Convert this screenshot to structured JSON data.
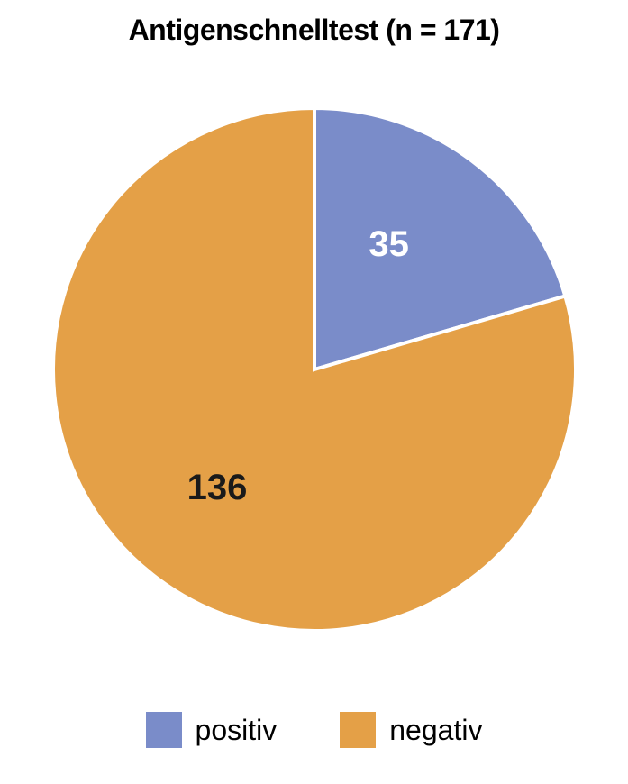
{
  "chart": {
    "type": "pie",
    "title": "Antigenschnelltest (n = 171)",
    "title_fontsize": 32,
    "title_fontweight": 700,
    "background_color": "#ffffff",
    "slice_border_color": "#ffffff",
    "slice_border_width": 4,
    "label_fontsize": 40,
    "legend_fontsize": 32,
    "slices": [
      {
        "name": "positiv",
        "value": 35,
        "color": "#7a8cc9",
        "label": "35",
        "label_color": "#ffffff"
      },
      {
        "name": "negativ",
        "value": 136,
        "color": "#e4a047",
        "label": "136",
        "label_color": "#1a1a1a"
      }
    ],
    "start_angle_deg": 0,
    "legend_position": "bottom"
  }
}
